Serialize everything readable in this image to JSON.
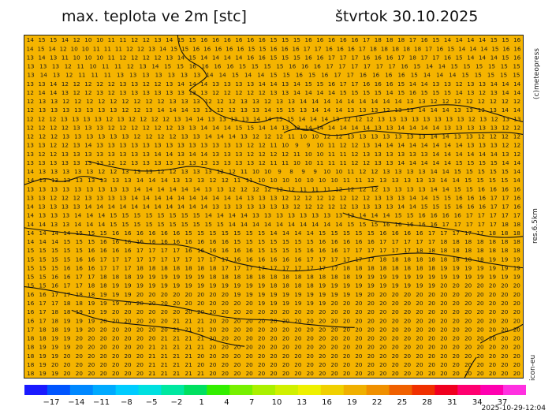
{
  "header": {
    "title": "max. teplota ve 2m [stc]",
    "date": "štvrtok 30.10.2025"
  },
  "side": {
    "credit": "(c)meteopress",
    "resolution": "res.6.5km",
    "model": "icon-eu"
  },
  "footer": {
    "timestamp": "2025-10-29-12:04"
  },
  "colorscale": {
    "labels": [
      "−17",
      "−14",
      "−11",
      "−8",
      "−5",
      "−2",
      "1",
      "4",
      "7",
      "10",
      "13",
      "16",
      "19",
      "22",
      "25",
      "28",
      "31",
      "34",
      "37"
    ],
    "colors": [
      "#1a1aff",
      "#0055ff",
      "#0088ff",
      "#00aaff",
      "#00ccff",
      "#00e0e0",
      "#00e8a0",
      "#00e060",
      "#33ee00",
      "#77f000",
      "#aaf000",
      "#d0f000",
      "#eef000",
      "#f0d000",
      "#f0b000",
      "#f09000",
      "#f06000",
      "#f03000",
      "#f00020",
      "#ff0070",
      "#ff00b0",
      "#ff30e0"
    ]
  },
  "map": {
    "background": "#f5b400",
    "text_color": "#1a1a1a",
    "rows": [
      "14 15 15 14 12 10 10 11 11 12 12 13 14 15 15 16 16 16 16 16 16 15 15 15 16 16 16 16 16 17 18 18 18 17 16 15 14 14 14 14 15 15 16",
      "14 15 14 12 10 10 11 11 11 12 12 13 14 15 15 16 16 16 16 16 15 15 16 16 16 17 17 16 16 16 17 18 18 18 18 18 17 16 15 14 14 14 15 16 16",
      "13 14 13 11 10 10 10 11 12 12 12 12 13 14 15 14 14 14 14 16 16 15 15 15 16 16 17 17 17 16 16 16 17 18 17 17 16 15 14 14 14 15 16",
      "13 13 13 12 11 10 11 11 12 13 14 15 15 16 16 16 16 15 15 15 15 16 16 16 17 17 17 17 17 17 16 15 14 14 15 15 15 15 15 15",
      "13 14 13 12 11 11 11 13 13 13 13 13 13 13 14 14 15 14 14 15 15 16 15 16 17 17 16 16 16 16 15 14 14 14 15 15 15 15 15",
      "13 13 14 12 12 12 12 12 13 13 12 12 13 14 14 14 13 13 13 13 14 14 13 14 15 15 16 17 17 16 16 16 15 14 14 13 13 12 13 13 14 14 14",
      "12 14 14 13 12 12 13 12 13 13 13 13 13 13 13 13 12 12 12 12 12 13 13 14 14 14 14 15 15 15 15 14 15 16 15 15 15 14 13 12 13 14 14",
      "12 13 13 12 12 12 12 12 12 12 12 12 13 13 13 12 12 12 13 13 12 13 13 14 14 14 14 14 14 14 14 14 13 13 12 12 12 12 12 12 12 12",
      "12 13 13 13 13 13 13 13 12 12 13 14 14 14 13 13 12 12 13 13 14 15 15 13 14 14 14 13 13 13 12 13 13 14 14 14 13 13 13 13 14 14",
      "12 12 12 13 13 13 13 12 13 12 12 12 12 13 14 14 13 13 13 13 14 14 15 15 14 14 14 13 12 12 12 13 13 13 13 13 13 13 13 12 13 12 13 13",
      "12 12 12 12 13 13 13 12 12 12 12 12 12 13 13 14 14 14 15 15 14 14 13 13 14 14 14 14 14 14 13 13 14 14 14 14 13 13 13 13 13 12 12",
      "12 12 12 13 13 13 13 13 13 12 12 12 12 13 13 14 14 14 13 12 12 12 11 10 10 12 12 13 13 13 13 13 13 13 14 14 13 13 12 12 12 12",
      "13 13 12 12 13 14 13 13 13 13 13 13 13 13 13 13 13 13 13 12 12 11 10 9 9 10 11 12 12 13 14 14 14 14 14 14 14 14 13 13 13 12 12",
      "13 12 12 13 13 13 13 13 13 13 13 14 14 13 14 14 13 13 13 12 12 12 12 11 10 10 11 11 12 13 13 13 13 13 13 14 14 14 14 14 14 13 12",
      "13 13 13 13 13 13 13 12 12 13 13 13 13 13 13 13 13 13 13 13 12 11 11 10 10 11 11 11 12 12 13 13 14 14 14 14 14 15 15 15 15 14 14",
      "14 13 13 13 13 13 12 12 13 13 13 12 12 13 13 13 12 12 11 10 10 9 8 9 9 10 10 11 12 12 13 13 13 13 14 14 15 15 15 15 15 14",
      "14 13 13 13 13 13 13 13 13 14 14 14 13 13 13 12 12 11 11 10 10 10 10 10 10 10 11 11 12 13 13 13 13 13 14 14 15 15 15 15 14",
      "13 13 13 13 13 13 13 13 13 14 14 14 14 14 14 13 13 12 12 12 12 12 12 11 11 11 12 12 12 12 13 13 13 13 14 14 15 15 16 16 16 16",
      "13 13 12 12 12 13 13 13 13 14 14 14 14 14 14 14 14 14 14 13 13 13 12 12 12 12 12 12 12 12 13 13 13 14 14 15 15 16 16 16 17 17 16",
      "14 13 13 13 13 14 14 14 14 14 14 14 14 14 14 14 13 13 13 13 13 13 13 12 12 12 12 12 13 13 13 13 14 14 15 15 15 16 16 16 17 17 16",
      "14 13 13 13 14 14 14 15 15 15 15 15 15 15 15 14 14 14 14 13 13 13 13 13 13 13 13 13 14 14 14 15 15 16 16 16 16 17 17 17 17 17",
      "14 14 13 13 14 14 14 15 15 15 15 15 15 15 15 15 15 14 14 14 14 14 14 14 14 14 14 15 15 15 16 16 16 16 16 17 17 17 17 17 18 18",
      "14 14 14 14 15 15 15 16 16 16 16 16 16 15 15 15 15 15 15 15 14 14 14 14 15 15 15 15 15 16 16 16 16 17 17 17 17 17 18 18 18",
      "14 14 14 15 15 15 16 16 16 16 16 16 16 16 16 16 16 15 15 15 15 15 15 15 16 16 16 16 16 17 17 17 17 17 18 18 18 18 18 18 18",
      "15 15 15 15 15 16 16 16 16 17 17 17 17 16 16 16 16 16 16 15 15 15 15 16 16 16 17 17 17 17 17 17 18 18 18 18 18 18 18 18 18",
      "15 15 15 15 16 16 17 17 17 17 17 17 17 17 17 17 17 16 16 16 16 16 16 17 17 17 17 17 17 18 18 18 18 18 18 18 18 18 19 19 19",
      "15 15 15 16 16 16 17 17 17 18 18 18 18 18 18 18 17 17 17 17 17 17 17 17 17 17 18 18 18 18 18 18 18 18 19 19 19 19 19 19 19",
      "15 15 16 16 17 17 18 18 18 19 19 19 19 19 19 18 18 18 18 18 18 18 18 18 18 18 18 19 19 19 19 19 19 19 19 19 19 19 19 19 19",
      "15 15 16 17 17 18 18 19 19 19 19 19 19 19 19 19 19 19 19 19 18 18 18 18 19 19 19 19 19 19 19 19 19 19 20 20 20 20 20 20 20",
      "16 16 17 17 18 18 19 19 19 20 20 20 20 20 20 20 20 19 19 19 19 19 19 19 19 19 19 19 20 20 20 20 20 20 20 20 20 20 20 20 20",
      "16 17 17 18 18 19 19 19 20 20 20 20 20 20 20 20 20 20 20 19 19 19 19 19 19 20 20 20 20 20 20 20 20 20 20 20 20 20 20 20 20",
      "16 17 18 18 19 19 19 20 20 20 20 20 20 20 20 20 20 20 20 20 20 20 20 20 20 20 20 20 20 20 20 20 20 20 20 20 20 20 20 20 20",
      "16 17 18 19 19 19 20 20 20 20 20 20 21 21 21 20 20 20 20 20 20 20 20 20 20 20 20 20 20 20 20 20 20 20 20 20 20 20 20 20 20",
      "17 18 18 19 19 20 20 20 20 20 20 20 21 21 21 20 20 20 20 20 20 20 20 20 20 20 20 20 20 20 20 20 20 20 20 20 20 20 20 20 20",
      "18 18 19 19 20 20 20 20 20 20 20 21 21 21 21 20 20 20 20 20 20 20 20 20 20 20 20 20 20 20 20 20 20 20 20 20 20 20 20 20 20",
      "18 19 19 19 20 20 20 20 20 20 21 21 21 21 21 20 20 20 20 20 20 20 20 20 20 20 20 20 20 20 20 20 20 20 20 20 20 20 20 20 20",
      "18 19 19 20 20 20 20 20 20 20 21 21 21 21 20 20 20 20 20 20 20 20 20 20 20 20 20 20 20 20 20 20 20 20 20 20 20 20 20 20 20",
      "18 19 20 20 20 20 20 20 20 20 21 21 21 21 20 20 20 20 20 20 20 20 20 20 20 20 20 20 20 20 20 20 20 20 20 20 20 20 20 20 20",
      "18 19 19 20 20 20 20 20 20 20 21 21 21 21 21 20 20 20 20 20 20 20 20 20 20 20 20 20 20 20 20 20 20 20 20 20 20 20 20 20 20"
    ]
  }
}
